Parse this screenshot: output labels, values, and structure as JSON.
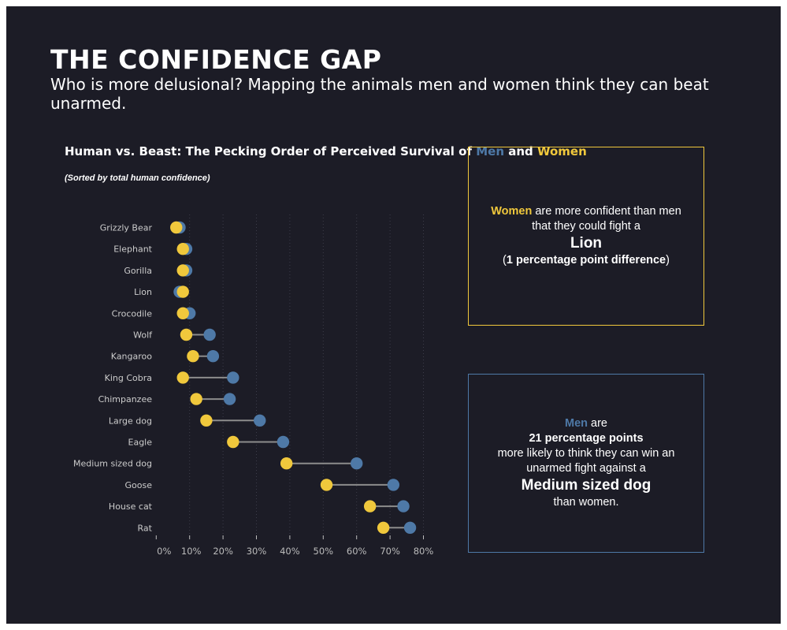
{
  "header": {
    "title": "THE CONFIDENCE GAP",
    "subtitle": "Who is more delusional? Mapping the animals men and women think they can beat unarmed."
  },
  "colors": {
    "men": "#4e79a7",
    "women": "#f0c83c",
    "connector": "#8c8c8c",
    "background": "#1c1c26"
  },
  "chart_data": {
    "type": "dumbbell",
    "title_parts": [
      "Human vs. Beast: The Pecking Order of Perceived Survival of ",
      "Men",
      " and ",
      "Women"
    ],
    "note": "(Sorted by total human confidence)",
    "xlim": [
      0,
      80
    ],
    "x_ticks": [
      "0%",
      "10%",
      "20%",
      "30%",
      "40%",
      "50%",
      "60%",
      "70%",
      "80%"
    ],
    "x_tick_values": [
      0,
      10,
      20,
      30,
      40,
      50,
      60,
      70,
      80
    ],
    "grid": "vertical dotted",
    "categories": [
      "Grizzly Bear",
      "Elephant",
      "Gorilla",
      "Lion",
      "Crocodile",
      "Wolf",
      "Kangaroo",
      "King Cobra",
      "Chimpanzee",
      "Large dog",
      "Eagle",
      "Medium sized dog",
      "Goose",
      "House cat",
      "Rat"
    ],
    "series": [
      {
        "name": "Men",
        "values": [
          7,
          9,
          9,
          7,
          10,
          16,
          17,
          23,
          22,
          31,
          38,
          60,
          71,
          74,
          76
        ]
      },
      {
        "name": "Women",
        "values": [
          6,
          8,
          8,
          8,
          8,
          9,
          11,
          8,
          12,
          15,
          23,
          39,
          51,
          64,
          68
        ]
      }
    ]
  },
  "callout1": {
    "women": "Women",
    "line1": " are more confident than men",
    "line2": "that they could fight a",
    "animal": "Lion",
    "open": "(",
    "diff": "1 percentage point difference",
    "close": ")"
  },
  "callout2": {
    "men": "Men",
    "are": " are",
    "points": "21 percentage points",
    "line3": "more likely to think they can win an",
    "line4": "unarmed fight against a",
    "animal": "Medium sized dog",
    "line6": "than women."
  }
}
